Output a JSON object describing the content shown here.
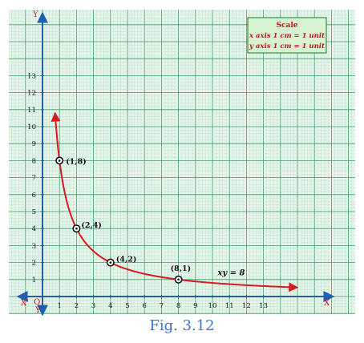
{
  "chart_data": {
    "type": "line",
    "equation_label": "xy = 8",
    "scale_box": {
      "title": "Scale",
      "line1": "x axis 1 cm = 1 unit",
      "line2": "y axis 1 cm = 1 unit"
    },
    "x_ticks": [
      "1",
      "2",
      "3",
      "4",
      "5",
      "6",
      "7",
      "8",
      "9",
      "10",
      "11",
      "12",
      "13"
    ],
    "y_ticks": [
      "1",
      "2",
      "3",
      "4",
      "5",
      "6",
      "7",
      "8",
      "9",
      "10",
      "11",
      "12",
      "13"
    ],
    "axis_labels": {
      "x": "X",
      "x_neg": "X'",
      "y": "Y",
      "y_neg": "Y'",
      "origin": "O"
    },
    "xlim": [
      -1.5,
      17.5
    ],
    "ylim": [
      -1.5,
      17.0
    ],
    "curve": {
      "x_from": 0.74,
      "x_to": 15.0
    },
    "points": [
      {
        "x": 1,
        "y": 8,
        "label": "(1,8)"
      },
      {
        "x": 2,
        "y": 4,
        "label": "(2,4)"
      },
      {
        "x": 4,
        "y": 2,
        "label": "(4,2)"
      },
      {
        "x": 8,
        "y": 1,
        "label": "(8,1)"
      }
    ],
    "colors": {
      "grid_minor": "#bfe3cc",
      "grid_major": "#3e9c63",
      "paper": "#e6f5eb",
      "axis": "#1f5fb0",
      "curve": "#d71920",
      "scale_box_bg": "#d8f3d2",
      "scale_box_border": "#2f8f45",
      "scale_text": "#c4161c"
    }
  },
  "caption": "Fig. 3.12"
}
